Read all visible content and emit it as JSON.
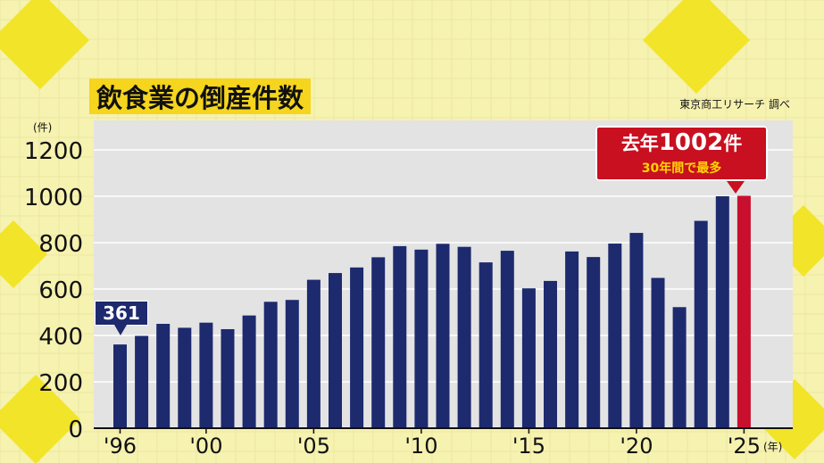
{
  "chart_data": {
    "type": "bar",
    "title": "飲食業の倒産件数",
    "source": "東京商工リサーチ 調べ",
    "y_unit": "(件)",
    "x_unit": "(年)",
    "ylim": [
      0,
      1200
    ],
    "y_ticks": [
      0,
      200,
      400,
      600,
      800,
      1000,
      1200
    ],
    "x_tick_labels": [
      "'96",
      "'00",
      "'05",
      "'10",
      "'15",
      "'20",
      "'25"
    ],
    "x_tick_years": [
      1996,
      2000,
      2005,
      2010,
      2015,
      2020,
      2025
    ],
    "categories": [
      1996,
      1997,
      1998,
      1999,
      2000,
      2001,
      2002,
      2003,
      2004,
      2005,
      2006,
      2007,
      2008,
      2009,
      2010,
      2011,
      2012,
      2013,
      2014,
      2015,
      2016,
      2017,
      2018,
      2019,
      2020,
      2021,
      2022,
      2023,
      2024,
      2025
    ],
    "values": [
      361,
      398,
      450,
      433,
      455,
      427,
      486,
      545,
      553,
      640,
      669,
      693,
      737,
      785,
      770,
      795,
      782,
      715,
      765,
      603,
      635,
      762,
      738,
      796,
      842,
      648,
      522,
      894,
      1000,
      1002
    ],
    "highlight_index": 29,
    "grid": true,
    "colors": {
      "bar": "#1d2a6e",
      "highlight": "#c8102e",
      "plot_bg": "#e3e3e3",
      "grid": "#ffffff"
    }
  },
  "callout": {
    "prefix": "去年",
    "number": "1002",
    "suffix": "件",
    "subtitle": "30年間で最多"
  },
  "first_label": "361"
}
